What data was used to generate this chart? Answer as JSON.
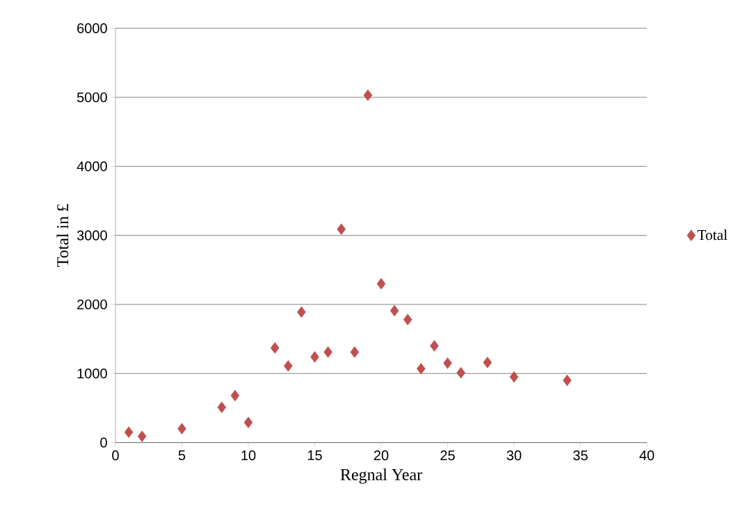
{
  "chart_data": {
    "type": "scatter",
    "xlabel": "Regnal Year",
    "ylabel": "Total in £",
    "x": [
      1,
      2,
      5,
      8,
      9,
      10,
      12,
      13,
      14,
      15,
      16,
      17,
      18,
      19,
      20,
      21,
      22,
      23,
      24,
      25,
      26,
      28,
      30,
      34
    ],
    "series": [
      {
        "name": "Total",
        "color": "#c0504d",
        "values": [
          150,
          90,
          200,
          510,
          680,
          290,
          1370,
          1110,
          1890,
          1240,
          1310,
          3090,
          1310,
          5030,
          2300,
          1910,
          1780,
          1070,
          1400,
          1150,
          1010,
          1160,
          950,
          900
        ]
      }
    ],
    "xlim": [
      0,
      40
    ],
    "ylim": [
      0,
      6000
    ],
    "xticks": [
      0,
      5,
      10,
      15,
      20,
      25,
      30,
      35,
      40
    ],
    "yticks": [
      0,
      1000,
      2000,
      3000,
      4000,
      5000,
      6000
    ],
    "grid": "y",
    "legend": "right",
    "marker": "diamond"
  }
}
